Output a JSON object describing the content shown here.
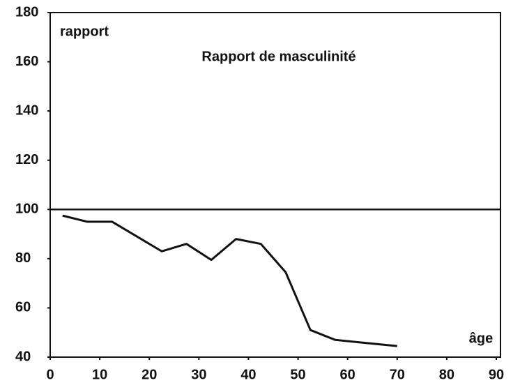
{
  "chart_data": {
    "type": "line",
    "title": "Rapport de masculinité",
    "y_label": "rapport",
    "x_label": "âge",
    "x": [
      2.5,
      7.5,
      12.5,
      17.5,
      22.5,
      27.5,
      32.5,
      37.5,
      42.5,
      47.5,
      52.5,
      57.5,
      62.5,
      67.5,
      70
    ],
    "series": [
      {
        "name": "rapport",
        "color": "#111111",
        "values": [
          97.5,
          95,
          95,
          89,
          83,
          86,
          79.5,
          88,
          86,
          74.5,
          51,
          47,
          46,
          45,
          44.5
        ]
      }
    ],
    "reference_line": 100,
    "xlim": [
      0,
      90
    ],
    "xticks": [
      0,
      10,
      20,
      30,
      40,
      50,
      60,
      70,
      80,
      90
    ],
    "ylim": [
      40,
      180
    ],
    "yticks": [
      40,
      60,
      80,
      100,
      120,
      140,
      160,
      180
    ],
    "grid": false
  }
}
